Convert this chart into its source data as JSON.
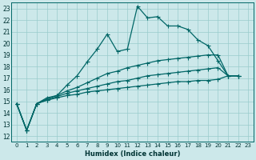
{
  "xlabel": "Humidex (Indice chaleur)",
  "background_color": "#cce8ea",
  "grid_color": "#99cccc",
  "line_color": "#006666",
  "xlim": [
    -0.5,
    23.5
  ],
  "ylim": [
    11.5,
    23.5
  ],
  "yticks": [
    12,
    13,
    14,
    15,
    16,
    17,
    18,
    19,
    20,
    21,
    22,
    23
  ],
  "xticks": [
    0,
    1,
    2,
    3,
    4,
    5,
    6,
    7,
    8,
    9,
    10,
    11,
    12,
    13,
    14,
    15,
    16,
    17,
    18,
    19,
    20,
    21,
    22,
    23
  ],
  "series": [
    [
      14.8,
      12.5,
      14.8,
      15.3,
      15.5,
      16.4,
      17.2,
      18.4,
      19.5,
      20.8,
      19.3,
      19.5,
      23.2,
      22.2,
      22.3,
      21.5,
      21.5,
      21.2,
      20.3,
      19.8,
      18.5,
      17.2,
      17.2
    ],
    [
      14.8,
      12.5,
      14.8,
      15.2,
      15.5,
      15.9,
      16.2,
      16.6,
      17.0,
      17.4,
      17.6,
      17.9,
      18.1,
      18.3,
      18.5,
      18.6,
      18.7,
      18.8,
      18.9,
      19.0,
      19.0,
      17.2,
      17.2
    ],
    [
      14.8,
      12.5,
      14.8,
      15.1,
      15.4,
      15.7,
      15.9,
      16.1,
      16.3,
      16.5,
      16.7,
      16.8,
      17.0,
      17.2,
      17.3,
      17.4,
      17.5,
      17.6,
      17.7,
      17.8,
      17.9,
      17.2,
      17.2
    ],
    [
      14.8,
      12.5,
      14.8,
      15.1,
      15.3,
      15.5,
      15.6,
      15.8,
      15.9,
      16.0,
      16.1,
      16.2,
      16.3,
      16.4,
      16.5,
      16.6,
      16.7,
      16.7,
      16.8,
      16.8,
      16.9,
      17.2,
      17.2
    ]
  ],
  "markersize": 2.0,
  "linewidth": 0.9
}
